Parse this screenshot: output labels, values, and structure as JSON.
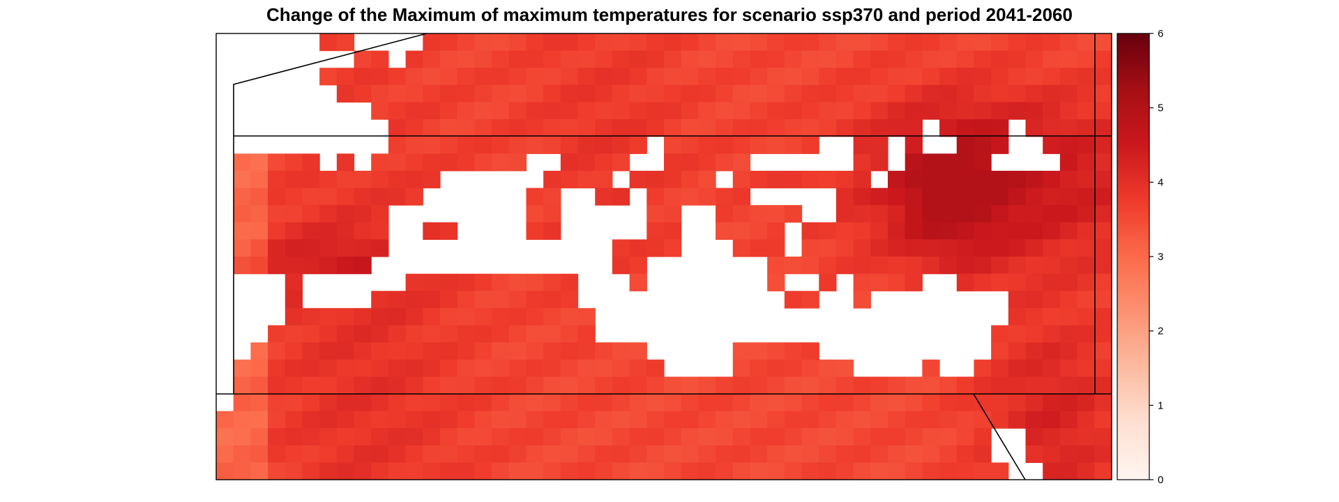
{
  "title": "Change of the Maximum of maximum temperatures for scenario ssp370 and period 2041-2060",
  "colorbar": {
    "ticks": [
      "0",
      "1",
      "2",
      "3",
      "4",
      "5",
      "6"
    ],
    "min": 0,
    "max": 6,
    "colors": [
      "#fff5f0",
      "#fee0d2",
      "#fcbba1",
      "#fc9272",
      "#fb6a4a",
      "#ef3b2c",
      "#cb181d",
      "#a50f15",
      "#67000d"
    ]
  },
  "map": {
    "sea_color": "#ffffff",
    "frame_color": "#000000"
  }
}
